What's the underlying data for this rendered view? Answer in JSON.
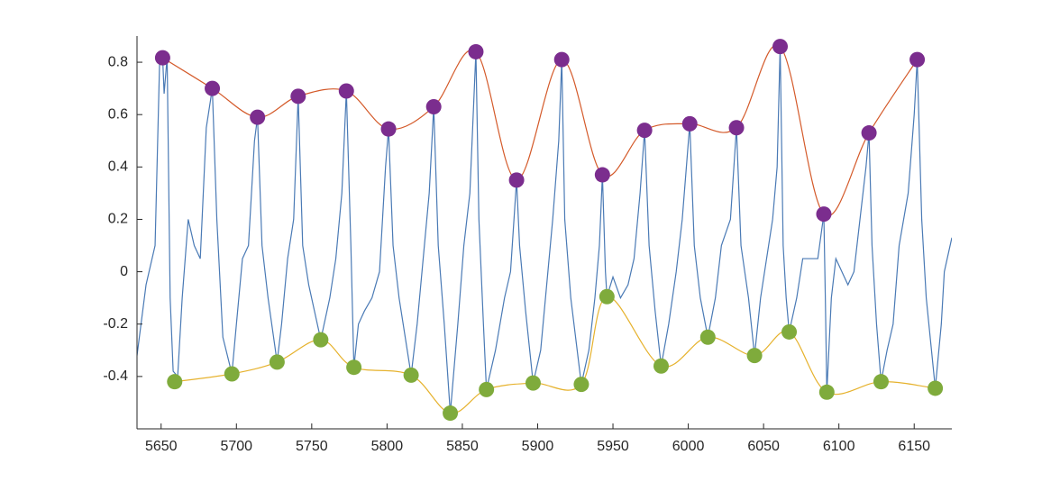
{
  "chart_data": {
    "type": "line",
    "xlim": [
      5634,
      6175
    ],
    "ylim": [
      -0.6,
      0.9
    ],
    "xticks": [
      5650,
      5700,
      5750,
      5800,
      5850,
      5900,
      5950,
      6000,
      6050,
      6100,
      6150
    ],
    "yticks": [
      -0.4,
      -0.2,
      0,
      0.2,
      0.4,
      0.6,
      0.8
    ],
    "series": [
      {
        "color": "#4a7ab5",
        "style": "line",
        "x": [
          5634,
          5640,
          5646,
          5649,
          5651,
          5652,
          5654,
          5656,
          5658,
          5661,
          5664,
          5668,
          5672,
          5676,
          5680,
          5684,
          5687,
          5691,
          5697,
          5700,
          5704,
          5708,
          5712,
          5714,
          5717,
          5721,
          5727,
          5730,
          5734,
          5738,
          5741,
          5744,
          5748,
          5756,
          5762,
          5766,
          5770,
          5773,
          5776,
          5778,
          5781,
          5785,
          5790,
          5795,
          5799,
          5801,
          5804,
          5808,
          5816,
          5820,
          5824,
          5828,
          5831,
          5834,
          5838,
          5842,
          5847,
          5851,
          5855,
          5859,
          5861,
          5864,
          5866,
          5872,
          5878,
          5882,
          5886,
          5888,
          5892,
          5897,
          5902,
          5906,
          5910,
          5914,
          5916,
          5918,
          5922,
          5929,
          5934,
          5938,
          5941,
          5943,
          5945,
          5946,
          5950,
          5955,
          5960,
          5964,
          5968,
          5971,
          5974,
          5978,
          5982,
          5987,
          5992,
          5996,
          6001,
          6004,
          6008,
          6013,
          6018,
          6022,
          6028,
          6032,
          6035,
          6040,
          6044,
          6048,
          6052,
          6056,
          6059,
          6061,
          6063,
          6065,
          6067,
          6072,
          6076,
          6080,
          6086,
          6090,
          6091,
          6092,
          6095,
          6098,
          6102,
          6106,
          6110,
          6114,
          6118,
          6120,
          6122,
          6125,
          6128,
          6132,
          6136,
          6140,
          6146,
          6150,
          6152,
          6155,
          6158,
          6164,
          6168,
          6170,
          6175
        ],
        "values": [
          -0.32,
          -0.05,
          0.1,
          0.8,
          0.82,
          0.68,
          0.82,
          -0.1,
          -0.38,
          -0.4,
          -0.1,
          0.2,
          0.1,
          0.05,
          0.55,
          0.7,
          0.2,
          -0.25,
          -0.39,
          -0.2,
          0.05,
          0.1,
          0.5,
          0.59,
          0.1,
          -0.1,
          -0.345,
          -0.2,
          0.05,
          0.2,
          0.67,
          0.1,
          -0.05,
          -0.26,
          -0.1,
          0.05,
          0.3,
          0.69,
          0.1,
          -0.365,
          -0.2,
          -0.15,
          -0.1,
          0.0,
          0.4,
          0.545,
          0.1,
          -0.1,
          -0.395,
          -0.2,
          0.05,
          0.3,
          0.63,
          0.1,
          -0.2,
          -0.54,
          -0.2,
          0.1,
          0.3,
          0.84,
          0.2,
          -0.2,
          -0.45,
          -0.3,
          -0.1,
          0.0,
          0.35,
          0.1,
          -0.15,
          -0.425,
          -0.3,
          -0.05,
          0.2,
          0.5,
          0.81,
          0.2,
          -0.1,
          -0.43,
          -0.3,
          -0.1,
          0.1,
          0.37,
          0.0,
          -0.095,
          -0.02,
          -0.1,
          -0.05,
          0.05,
          0.3,
          0.54,
          0.1,
          -0.15,
          -0.36,
          -0.2,
          0.0,
          0.2,
          0.565,
          0.1,
          -0.1,
          -0.25,
          -0.1,
          0.1,
          0.2,
          0.55,
          0.1,
          -0.1,
          -0.32,
          -0.1,
          0.05,
          0.2,
          0.4,
          0.86,
          0.1,
          -0.1,
          -0.23,
          -0.1,
          0.05,
          0.05,
          0.05,
          0.22,
          -0.1,
          -0.46,
          -0.1,
          0.05,
          0.0,
          -0.05,
          0.0,
          0.2,
          0.4,
          0.53,
          0.1,
          -0.2,
          -0.42,
          -0.3,
          -0.2,
          0.1,
          0.3,
          0.6,
          0.81,
          0.2,
          -0.1,
          -0.445,
          -0.2,
          0.0,
          0.13
        ]
      },
      {
        "color": "#d45a2a",
        "marker_color": "#7b2d8e",
        "style": "smooth",
        "x": [
          5651,
          5684,
          5714,
          5741,
          5773,
          5801,
          5831,
          5859,
          5886,
          5916,
          5943,
          5971,
          6001,
          6032,
          6061,
          6090,
          6120,
          6152
        ],
        "values": [
          0.817,
          0.7,
          0.59,
          0.67,
          0.69,
          0.545,
          0.63,
          0.84,
          0.35,
          0.81,
          0.37,
          0.54,
          0.565,
          0.55,
          0.86,
          0.22,
          0.53,
          0.81
        ]
      },
      {
        "color": "#e6b22d",
        "marker_color": "#7fab3c",
        "style": "smooth",
        "x": [
          5659,
          5697,
          5727,
          5756,
          5778,
          5816,
          5842,
          5866,
          5897,
          5929,
          5946,
          5982,
          6013,
          6044,
          6067,
          6092,
          6128,
          6164
        ],
        "values": [
          -0.42,
          -0.39,
          -0.345,
          -0.26,
          -0.365,
          -0.395,
          -0.54,
          -0.45,
          -0.425,
          -0.43,
          -0.095,
          -0.36,
          -0.25,
          -0.32,
          -0.23,
          -0.46,
          -0.42,
          -0.445
        ]
      }
    ]
  }
}
